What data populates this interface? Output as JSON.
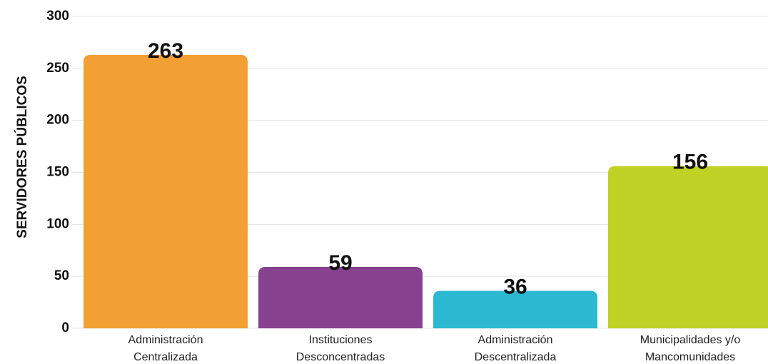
{
  "chart_data": {
    "type": "bar",
    "y_label": "SERVIDORES PÚBLICOS",
    "categories": [
      [
        "Administración",
        "Centralizada"
      ],
      [
        "Instituciones",
        "Desconcentradas"
      ],
      [
        "Administración",
        "Descentralizada"
      ],
      [
        "Municipalidades y/o",
        "Mancomunidades"
      ]
    ],
    "values": [
      263,
      59,
      36,
      156
    ],
    "colors": [
      "#f2a033",
      "#86418f",
      "#2bb8d0",
      "#bfd225"
    ],
    "ylim": [
      0,
      300
    ],
    "yticks": [
      0,
      50,
      100,
      150,
      200,
      250,
      300
    ],
    "grid": true
  }
}
